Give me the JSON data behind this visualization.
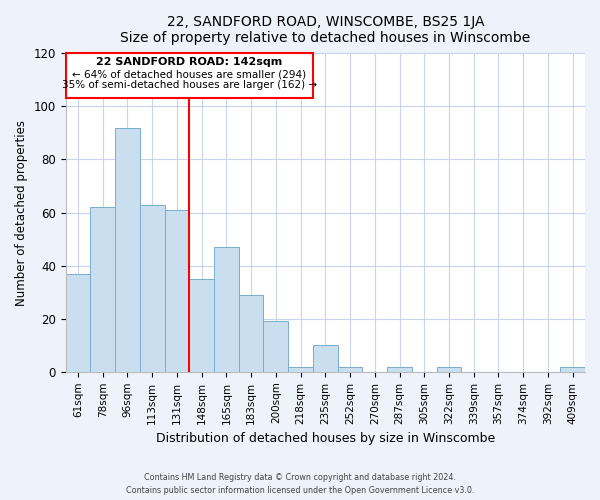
{
  "title": "22, SANDFORD ROAD, WINSCOMBE, BS25 1JA",
  "subtitle": "Size of property relative to detached houses in Winscombe",
  "xlabel": "Distribution of detached houses by size in Winscombe",
  "ylabel": "Number of detached properties",
  "bar_labels": [
    "61sqm",
    "78sqm",
    "96sqm",
    "113sqm",
    "131sqm",
    "148sqm",
    "165sqm",
    "183sqm",
    "200sqm",
    "218sqm",
    "235sqm",
    "252sqm",
    "270sqm",
    "287sqm",
    "305sqm",
    "322sqm",
    "339sqm",
    "357sqm",
    "374sqm",
    "392sqm",
    "409sqm"
  ],
  "bar_values": [
    37,
    62,
    92,
    63,
    61,
    35,
    47,
    29,
    19,
    2,
    10,
    2,
    0,
    2,
    0,
    2,
    0,
    0,
    0,
    0,
    2
  ],
  "bar_color": "#c9dff0",
  "bar_edge_color": "#7aaccc",
  "ylim": [
    0,
    120
  ],
  "yticks": [
    0,
    20,
    40,
    60,
    80,
    100,
    120
  ],
  "property_line_label": "22 SANDFORD ROAD: 142sqm",
  "annotation_line1": "← 64% of detached houses are smaller (294)",
  "annotation_line2": "35% of semi-detached houses are larger (162) →",
  "footer1": "Contains HM Land Registry data © Crown copyright and database right 2024.",
  "footer2": "Contains public sector information licensed under the Open Government Licence v3.0.",
  "background_color": "#eef2fb",
  "plot_background_color": "#ffffff",
  "grid_color": "#c8d4ec"
}
